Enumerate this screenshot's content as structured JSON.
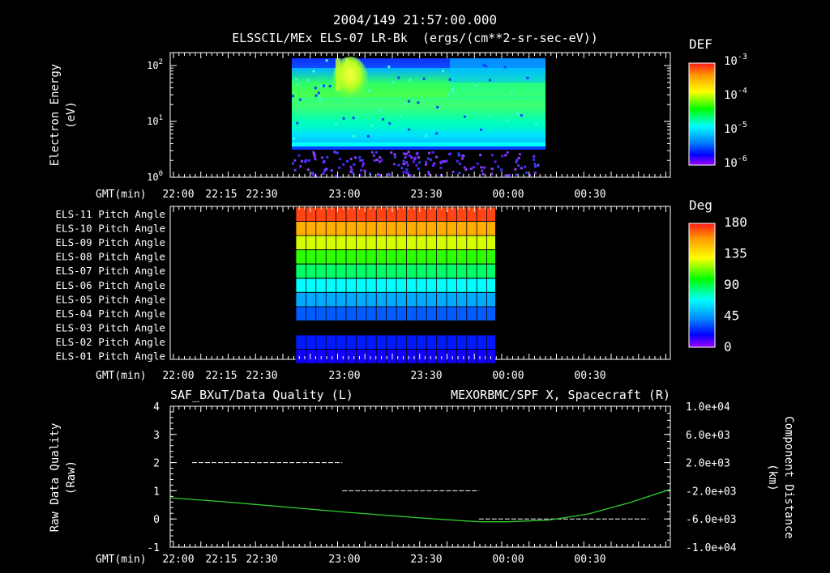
{
  "header": {
    "timestamp": "2004/149 21:57:00.000",
    "subtitle": "ELSSCIL/MEx ELS-07 LR-Bk  (ergs/(cm**2-sr-sec-eV))"
  },
  "x_axis_label": "GMT(min)",
  "x_ticks": [
    "22:00",
    "22:15",
    "22:30",
    "23:00",
    "23:30",
    "00:00",
    "00:30"
  ],
  "colors": {
    "background": "#000000",
    "axes": "#ffffff",
    "spacecraft_trace": "#2ecc2e",
    "quality_trace": "#ffffff"
  },
  "chart_data": [
    {
      "type": "heatmap",
      "ylabel": "Electron Energy\n(eV)",
      "yscale": "log",
      "ylim": [
        1,
        150
      ],
      "y_ticks": [
        "10^0",
        "10^1",
        "10^2"
      ],
      "data_time_range": [
        "22:43",
        "23:56"
      ],
      "colorbar": {
        "title": "DEF",
        "scale": "log",
        "ticks": [
          "10^-3",
          "10^-4",
          "10^-5",
          "10^-6"
        ],
        "gradient": [
          "#ff1a1a",
          "#ff9900",
          "#ffff00",
          "#00ff00",
          "#00ffff",
          "#0080ff",
          "#0000ff",
          "#a000ff"
        ]
      },
      "features": [
        {
          "description_energy_range_eV": [
            4,
            150
          ],
          "intensity": "green-cyan core"
        },
        {
          "description_energy_range_eV": [
            1,
            3.5
          ],
          "intensity": "sparse blue/purple noise"
        }
      ]
    },
    {
      "type": "heatmap",
      "title": "",
      "rows": [
        "ELS-11 Pitch Angle",
        "ELS-10 Pitch Angle",
        "ELS-09 Pitch Angle",
        "ELS-08 Pitch Angle",
        "ELS-07 Pitch Angle",
        "ELS-06 Pitch Angle",
        "ELS-05 Pitch Angle",
        "ELS-04 Pitch Angle",
        "ELS-03 Pitch Angle",
        "ELS-02 Pitch Angle",
        "ELS-01 Pitch Angle"
      ],
      "row_values_deg": [
        172,
        150,
        125,
        105,
        90,
        75,
        55,
        38,
        null,
        25,
        18
      ],
      "data_time_range": [
        "22:43",
        "23:56"
      ],
      "colorbar": {
        "title": "Deg",
        "ticks": [
          "180",
          "135",
          "90",
          "45",
          "0"
        ],
        "range": [
          0,
          180
        ]
      }
    },
    {
      "type": "line",
      "title_left": "SAF_BXuT/Data Quality (L)",
      "title_right": "MEXORBMC/SPF X, Spacecraft (R)",
      "ylabel_left": "Raw Data Quality\n(Raw)",
      "ylabel_right": "Component Distance\n(km)",
      "ylim_left": [
        -1,
        4
      ],
      "yticks_left": [
        "4",
        "3",
        "2",
        "1",
        "0",
        "-1"
      ],
      "ylim_right": [
        -10000,
        10000
      ],
      "yticks_right": [
        "1.0e+04",
        "6.0e+03",
        "2.0e+03",
        "-2.0e+03",
        "-6.0e+03",
        "-1.0e+04"
      ],
      "series": [
        {
          "name": "SAF_BXuT/Data Quality (L)",
          "axis": "left",
          "segments": [
            {
              "t_start": "22:05",
              "t_end": "23:00",
              "value": 2
            },
            {
              "t_start": "23:00",
              "t_end": "23:50",
              "value": 1
            },
            {
              "t_start": "23:50",
              "t_end": "00:52",
              "value": 0
            }
          ]
        },
        {
          "name": "MEXORBMC/SPF X, Spacecraft (R)",
          "axis": "right",
          "x": [
            "21:57",
            "22:15",
            "22:30",
            "23:00",
            "23:30",
            "23:50",
            "00:00",
            "00:15",
            "00:30",
            "00:45",
            "01:00"
          ],
          "y": [
            -3000,
            -3500,
            -4000,
            -5000,
            -5900,
            -6400,
            -6400,
            -6200,
            -5300,
            -3700,
            -1800
          ]
        }
      ]
    }
  ]
}
